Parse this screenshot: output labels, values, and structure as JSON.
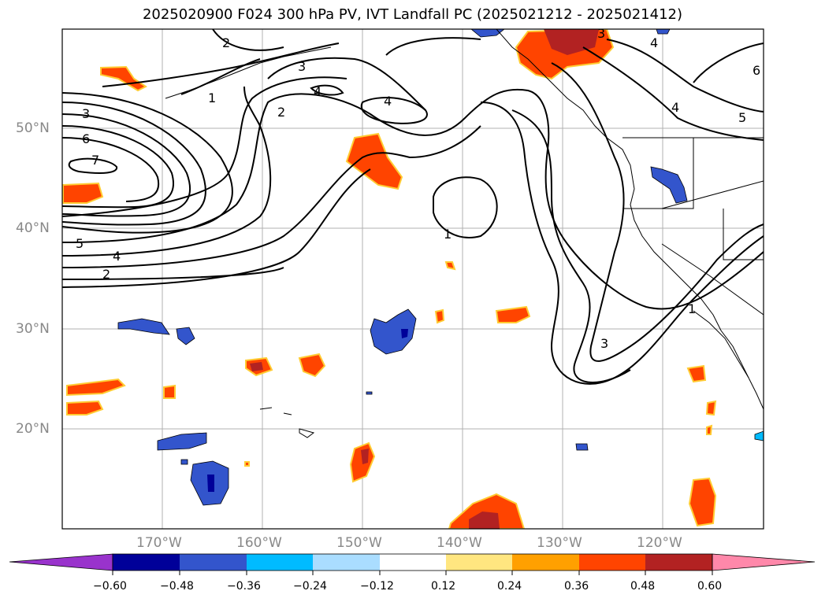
{
  "title": "2025020900 F024 300 hPa PV, IVT Landfall PC (2025021212 - 2025021412)",
  "lat_labels": [
    "50°N",
    "40°N",
    "30°N",
    "20°N"
  ],
  "lon_labels": [
    "170°W",
    "160°W",
    "150°W",
    "140°W",
    "130°W",
    "120°W"
  ],
  "colorbar": {
    "tick_labels": [
      "−0.60",
      "−0.48",
      "−0.36",
      "−0.24",
      "−0.12",
      "0.12",
      "0.24",
      "0.36",
      "0.48",
      "0.60"
    ],
    "colors": [
      "#9933cc",
      "#000099",
      "#3355cc",
      "#00bbff",
      "#aaddff",
      "#ffffff",
      "#ffe680",
      "#ffa000",
      "#ff4400",
      "#b22222",
      "#ff88aa"
    ]
  },
  "contour_labels": [
    "3",
    "6",
    "7",
    "5",
    "4",
    "2",
    "1",
    "2",
    "3",
    "4",
    "4",
    "2",
    "1",
    "3",
    "4",
    "5",
    "6",
    "4",
    "1",
    "3"
  ]
}
